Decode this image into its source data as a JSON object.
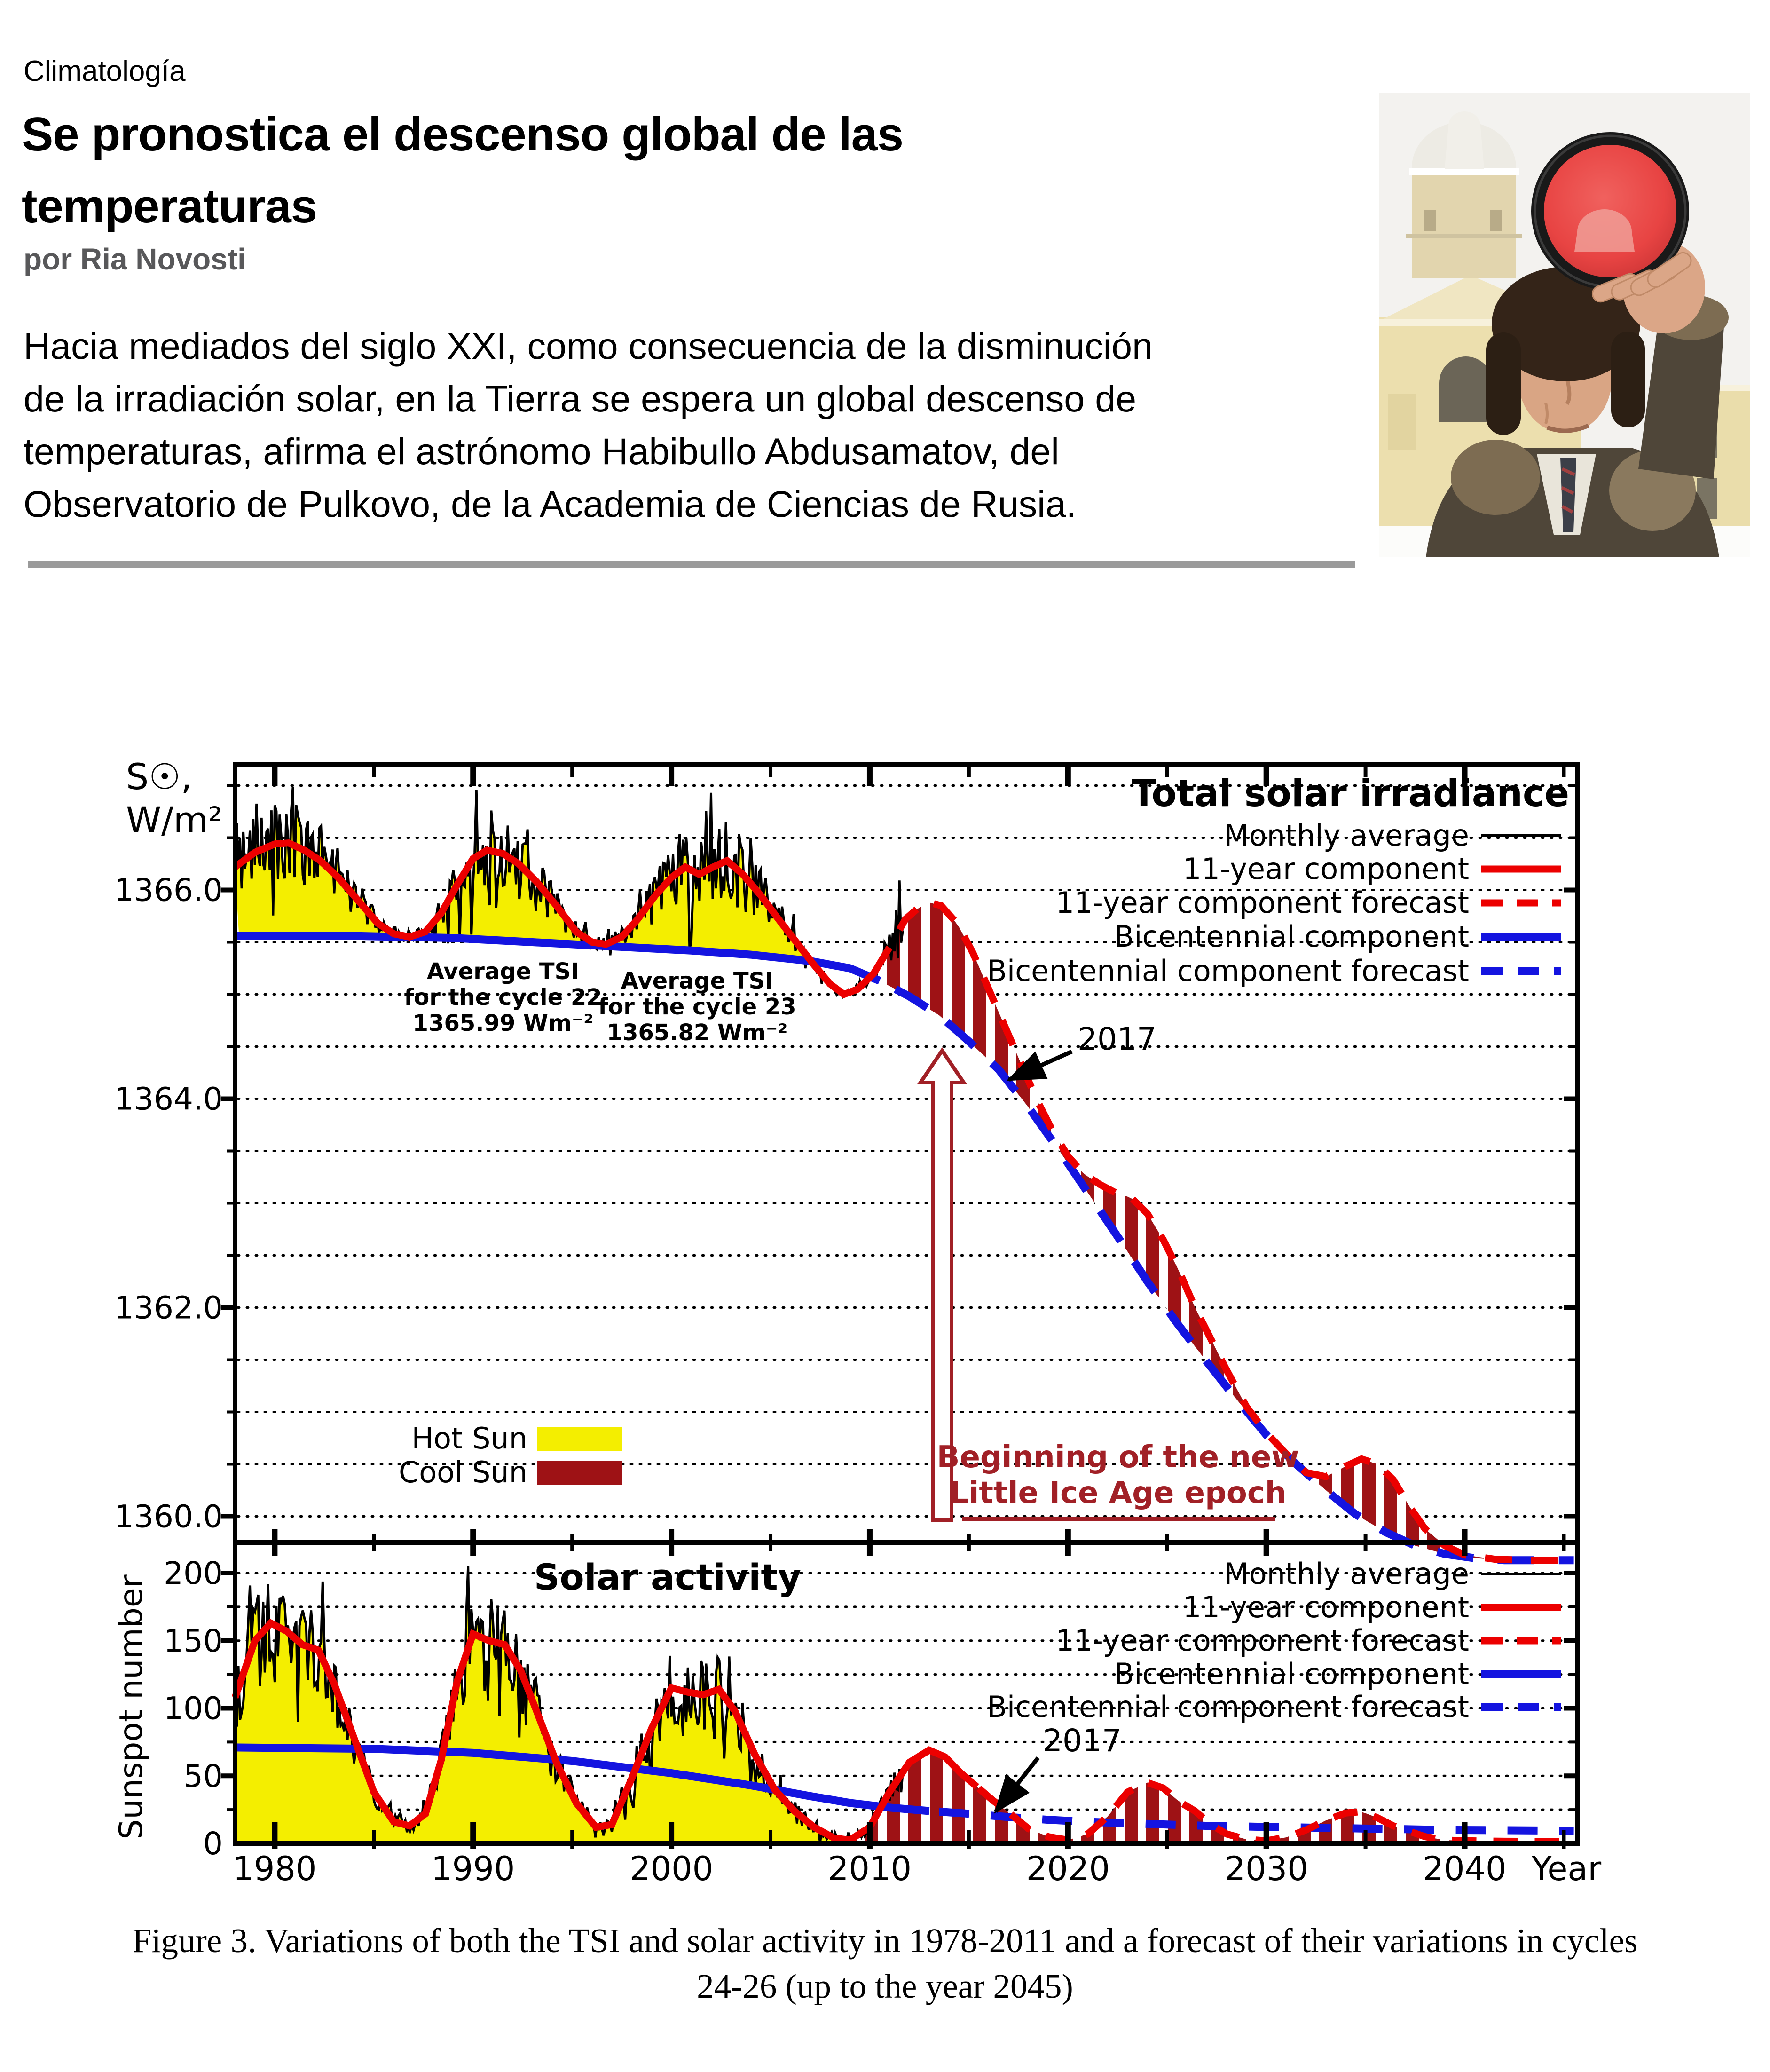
{
  "article": {
    "kicker": "Climatología",
    "title_lines": [
      "Se pronostica el descenso global de las",
      "temperaturas"
    ],
    "byline": "por Ria Novosti",
    "paragraph_lines": [
      "Hacia mediados del siglo XXI, como consecuencia de la disminución",
      "de la irradiación solar, en la Tierra se espera un global descenso de",
      "temperaturas, afirma el astrónomo Habibullo Abdusamatov, del",
      "Observatorio de Pulkovo, de la Academia de Ciencias de Rusia."
    ],
    "photo_description": "Astronomer in fur hat holding red solar filter, observatory dome behind"
  },
  "figure": {
    "caption_lines": [
      "Figure 3. Variations of both the TSI and solar activity in 1978-2011 and a forecast of their variations in cycles",
      "24-26 (up to the year 2045)"
    ]
  },
  "colors": {
    "red": "#ec0000",
    "blue": "#1414e0",
    "hot_yellow": "#f4ee00",
    "cool_darkred": "#9e1215",
    "annotation_red": "#a12026",
    "black": "#000000",
    "rule_gray": "#9a9a9a",
    "byline_gray": "#58585a"
  },
  "chart_data": [
    {
      "type": "line",
      "title": "Total solar irradiance",
      "ylabel_lines": [
        "S☉,",
        "W/m²"
      ],
      "xlabel": "Year",
      "xlim": [
        1978,
        2045.7
      ],
      "ylim": [
        1359.75,
        1367.25
      ],
      "grid_step": 0.5,
      "xticks": [
        1980,
        1990,
        2000,
        2010,
        2020,
        2030,
        2040
      ],
      "yticks": [
        {
          "v": 1366.0,
          "label": "1366.0"
        },
        {
          "v": 1364.0,
          "label": "1364.0"
        },
        {
          "v": 1362.0,
          "label": "1362.0"
        },
        {
          "v": 1360.0,
          "label": "1360.0"
        }
      ],
      "legend": [
        "Monthly average",
        "11-year component",
        "11-year component forecast",
        "Bicentennial component",
        "Bicentennial component forecast"
      ],
      "series": {
        "eleven_year": [
          [
            1978,
            1366.22
          ],
          [
            1979,
            1366.36
          ],
          [
            1980,
            1366.44
          ],
          [
            1980.7,
            1366.45
          ],
          [
            1981.5,
            1366.38
          ],
          [
            1982.3,
            1366.28
          ],
          [
            1983.2,
            1366.12
          ],
          [
            1984.2,
            1365.9
          ],
          [
            1985.2,
            1365.68
          ],
          [
            1986,
            1365.58
          ],
          [
            1986.8,
            1365.55
          ],
          [
            1987.6,
            1365.6
          ],
          [
            1988.4,
            1365.78
          ],
          [
            1989.2,
            1366.05
          ],
          [
            1990,
            1366.3
          ],
          [
            1990.7,
            1366.38
          ],
          [
            1991.5,
            1366.35
          ],
          [
            1992.3,
            1366.25
          ],
          [
            1993.2,
            1366.08
          ],
          [
            1994.2,
            1365.85
          ],
          [
            1995.2,
            1365.6
          ],
          [
            1996,
            1365.5
          ],
          [
            1996.7,
            1365.48
          ],
          [
            1997.5,
            1365.55
          ],
          [
            1998.3,
            1365.72
          ],
          [
            1999.2,
            1365.95
          ],
          [
            2000,
            1366.12
          ],
          [
            2000.7,
            1366.22
          ],
          [
            2001.4,
            1366.15
          ],
          [
            2002.1,
            1366.22
          ],
          [
            2002.8,
            1366.28
          ],
          [
            2003.6,
            1366.15
          ],
          [
            2004.5,
            1365.95
          ],
          [
            2005.4,
            1365.72
          ],
          [
            2006.3,
            1365.5
          ],
          [
            2007.2,
            1365.28
          ],
          [
            2008,
            1365.1
          ],
          [
            2008.7,
            1365.0
          ],
          [
            2009.4,
            1365.05
          ],
          [
            2010.2,
            1365.2
          ],
          [
            2011,
            1365.45
          ],
          [
            2011.8,
            1365.72
          ],
          [
            2012.4,
            1365.82
          ],
          [
            2013,
            1365.88
          ],
          [
            2013.6,
            1365.85
          ],
          [
            2014.4,
            1365.68
          ],
          [
            2015.2,
            1365.4
          ],
          [
            2016,
            1365.05
          ],
          [
            2016.8,
            1364.7
          ],
          [
            2017.6,
            1364.35
          ],
          [
            2018.4,
            1364.0
          ],
          [
            2019.2,
            1363.7
          ],
          [
            2020,
            1363.45
          ],
          [
            2020.8,
            1363.28
          ],
          [
            2021.6,
            1363.18
          ],
          [
            2022.4,
            1363.1
          ],
          [
            2023.2,
            1363.05
          ],
          [
            2024,
            1362.9
          ],
          [
            2024.8,
            1362.65
          ],
          [
            2025.6,
            1362.35
          ],
          [
            2026.4,
            1362.0
          ],
          [
            2027.2,
            1361.7
          ],
          [
            2028,
            1361.4
          ],
          [
            2029,
            1361.05
          ],
          [
            2030,
            1360.8
          ],
          [
            2031,
            1360.6
          ],
          [
            2032,
            1360.42
          ],
          [
            2033,
            1360.38
          ],
          [
            2034,
            1360.48
          ],
          [
            2034.8,
            1360.55
          ],
          [
            2035.6,
            1360.5
          ],
          [
            2036.4,
            1360.35
          ],
          [
            2037.2,
            1360.1
          ],
          [
            2038,
            1359.88
          ],
          [
            2039,
            1359.72
          ],
          [
            2040,
            1359.63
          ],
          [
            2041.5,
            1359.59
          ],
          [
            2043,
            1359.58
          ],
          [
            2045.5,
            1359.58
          ]
        ],
        "bicentennial": [
          [
            1978,
            1365.56
          ],
          [
            1984,
            1365.56
          ],
          [
            1989,
            1365.54
          ],
          [
            1993,
            1365.5
          ],
          [
            1997,
            1365.46
          ],
          [
            2001,
            1365.42
          ],
          [
            2004,
            1365.38
          ],
          [
            2007,
            1365.32
          ],
          [
            2009,
            1365.25
          ],
          [
            2010.5,
            1365.13
          ],
          [
            2012,
            1364.98
          ],
          [
            2013.5,
            1364.8
          ],
          [
            2015,
            1364.55
          ],
          [
            2016.5,
            1364.28
          ],
          [
            2018,
            1363.92
          ],
          [
            2019.5,
            1363.52
          ],
          [
            2021,
            1363.1
          ],
          [
            2022.5,
            1362.68
          ],
          [
            2024,
            1362.25
          ],
          [
            2025.5,
            1361.85
          ],
          [
            2027,
            1361.48
          ],
          [
            2028.5,
            1361.12
          ],
          [
            2030,
            1360.78
          ],
          [
            2031.5,
            1360.5
          ],
          [
            2033,
            1360.25
          ],
          [
            2034.5,
            1360.02
          ],
          [
            2036,
            1359.85
          ],
          [
            2037.5,
            1359.72
          ],
          [
            2039,
            1359.64
          ],
          [
            2040.5,
            1359.6
          ],
          [
            2042,
            1359.58
          ],
          [
            2045.5,
            1359.58
          ]
        ],
        "monthly_noise": {
          "seed": 20177,
          "base_amp": 0.055,
          "rel_amp": 0.4,
          "spike_p": 0.13,
          "spike_mul": 2.1,
          "t_end": 2011.7,
          "clamp": [
            1359.9,
            1367.1
          ]
        }
      },
      "forecast": {
        "red_dash_from": 2011.5,
        "blue_dash_from": 2011.3
      },
      "fills": {
        "hot_until": 2008.2,
        "cool_from": 2009.2
      },
      "annotations": {
        "avg_cycle22": [
          "Average TSI",
          "for the cycle 22",
          "1365.99 Wm⁻²"
        ],
        "avg_cycle23": [
          "Average TSI",
          "for the cycle 23",
          "1365.82 Wm⁻²"
        ],
        "year_marker": "2017",
        "ice_age": [
          "Beginning of the new",
          "Little Ice Age epoch"
        ],
        "hot_sun": "Hot Sun",
        "cool_sun": "Cool Sun"
      }
    },
    {
      "type": "line",
      "title": "Solar activity",
      "ylabel": "Sunspot number",
      "xlabel": "Year",
      "xlim": [
        1978,
        2045.7
      ],
      "ylim": [
        0,
        222.6
      ],
      "grid_step": 25,
      "xticks": [
        1980,
        1990,
        2000,
        2010,
        2020,
        2030,
        2040
      ],
      "yticks": [
        {
          "v": 0,
          "label": "0"
        },
        {
          "v": 50,
          "label": "50"
        },
        {
          "v": 100,
          "label": "100"
        },
        {
          "v": 150,
          "label": "150"
        },
        {
          "v": 200,
          "label": "200"
        }
      ],
      "legend": [
        "Monthly average",
        "11-year component",
        "11-year component forecast",
        "Bicentennial component",
        "Bicentennial component forecast"
      ],
      "series": {
        "eleven_year": [
          [
            1978,
            108
          ],
          [
            1979,
            150
          ],
          [
            1979.8,
            163
          ],
          [
            1980.6,
            157
          ],
          [
            1981.4,
            147
          ],
          [
            1982.2,
            143
          ],
          [
            1983,
            118
          ],
          [
            1984,
            78
          ],
          [
            1985,
            38
          ],
          [
            1986,
            16
          ],
          [
            1986.8,
            13
          ],
          [
            1987.6,
            22
          ],
          [
            1988.4,
            62
          ],
          [
            1989.2,
            120
          ],
          [
            1990,
            155
          ],
          [
            1990.8,
            150
          ],
          [
            1991.6,
            147
          ],
          [
            1992.4,
            128
          ],
          [
            1993.2,
            98
          ],
          [
            1994.2,
            60
          ],
          [
            1995.2,
            30
          ],
          [
            1996.2,
            12
          ],
          [
            1997,
            14
          ],
          [
            1998,
            48
          ],
          [
            1999,
            85
          ],
          [
            2000,
            115
          ],
          [
            2000.8,
            112
          ],
          [
            2001.6,
            110
          ],
          [
            2002.4,
            114
          ],
          [
            2003.2,
            98
          ],
          [
            2004.2,
            66
          ],
          [
            2005.2,
            40
          ],
          [
            2006.2,
            24
          ],
          [
            2007.2,
            12
          ],
          [
            2008.2,
            4
          ],
          [
            2009,
            2.5
          ],
          [
            2010,
            12
          ],
          [
            2011,
            38
          ],
          [
            2012,
            60
          ],
          [
            2013,
            69
          ],
          [
            2013.8,
            64
          ],
          [
            2014.6,
            52
          ],
          [
            2015.4,
            42
          ],
          [
            2016.2,
            32
          ],
          [
            2017,
            23
          ],
          [
            2018,
            11
          ],
          [
            2019,
            5
          ],
          [
            2020,
            2.5
          ],
          [
            2021,
            7
          ],
          [
            2022,
            20
          ],
          [
            2023,
            38
          ],
          [
            2024,
            45
          ],
          [
            2024.8,
            41
          ],
          [
            2025.6,
            31
          ],
          [
            2026.4,
            24
          ],
          [
            2027.2,
            14
          ],
          [
            2028,
            7
          ],
          [
            2029,
            3
          ],
          [
            2030,
            2
          ],
          [
            2031,
            4.5
          ],
          [
            2032,
            10
          ],
          [
            2033,
            17
          ],
          [
            2034,
            22.5
          ],
          [
            2034.8,
            23.5
          ],
          [
            2035.6,
            19
          ],
          [
            2036.4,
            13
          ],
          [
            2037.2,
            9
          ],
          [
            2038,
            5
          ],
          [
            2039,
            2.5
          ],
          [
            2040,
            2
          ],
          [
            2042,
            1.6
          ],
          [
            2045.5,
            1.5
          ]
        ],
        "bicentennial": [
          [
            1978,
            71
          ],
          [
            1985,
            70
          ],
          [
            1990,
            67
          ],
          [
            1995,
            61
          ],
          [
            2000,
            52
          ],
          [
            2004,
            43
          ],
          [
            2007,
            35
          ],
          [
            2009,
            30
          ],
          [
            2011,
            26.5
          ],
          [
            2013,
            24
          ],
          [
            2015,
            22
          ],
          [
            2017,
            19.5
          ],
          [
            2019,
            17.5
          ],
          [
            2021,
            16
          ],
          [
            2023,
            15
          ],
          [
            2025,
            14
          ],
          [
            2027,
            13
          ],
          [
            2029,
            12.5
          ],
          [
            2031,
            12
          ],
          [
            2033,
            11.5
          ],
          [
            2035,
            11
          ],
          [
            2037,
            10.5
          ],
          [
            2039,
            10
          ],
          [
            2041,
            9.8
          ],
          [
            2045.5,
            9.5
          ]
        ],
        "monthly_noise": {
          "seed": 4219,
          "base_amp": 3,
          "rel_amp": 0.21,
          "spike_p": 0.12,
          "spike_mul": 1.9,
          "t_end": 2011.7,
          "clamp": [
            0.3,
            205
          ]
        }
      },
      "forecast": {
        "red_dash_from": 2015.5,
        "blue_dash_from": 2013.5
      },
      "fills": {
        "hot_until": 2008.7,
        "cool_from": 2008.7
      },
      "annotations": {
        "year_marker": "2017"
      }
    }
  ]
}
